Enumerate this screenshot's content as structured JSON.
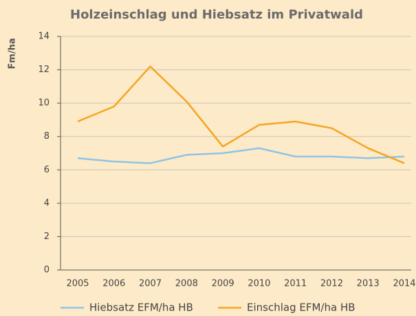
{
  "chart_data": {
    "type": "line",
    "title": "Holzeinschlag und Hiebsatz im Privatwald",
    "y_label": "Fm/ha",
    "categories": [
      "2005",
      "2006",
      "2007",
      "2008",
      "2009",
      "2010",
      "2011",
      "2012",
      "2013",
      "2014"
    ],
    "series": [
      {
        "name": "Hiebsatz EFM/ha HB",
        "color": "#8ec4e6",
        "values": [
          6.7,
          6.5,
          6.4,
          6.9,
          7.0,
          7.3,
          6.8,
          6.8,
          6.7,
          6.8
        ]
      },
      {
        "name": "Einschlag EFM/ha HB",
        "color": "#f4a522",
        "values": [
          8.9,
          9.8,
          12.2,
          10.1,
          7.4,
          8.7,
          8.9,
          8.5,
          7.3,
          6.4
        ]
      }
    ],
    "ylim": [
      0,
      14
    ],
    "yticks": [
      0,
      2,
      4,
      6,
      8,
      10,
      12,
      14
    ],
    "grid": true,
    "legend": "bottom"
  }
}
